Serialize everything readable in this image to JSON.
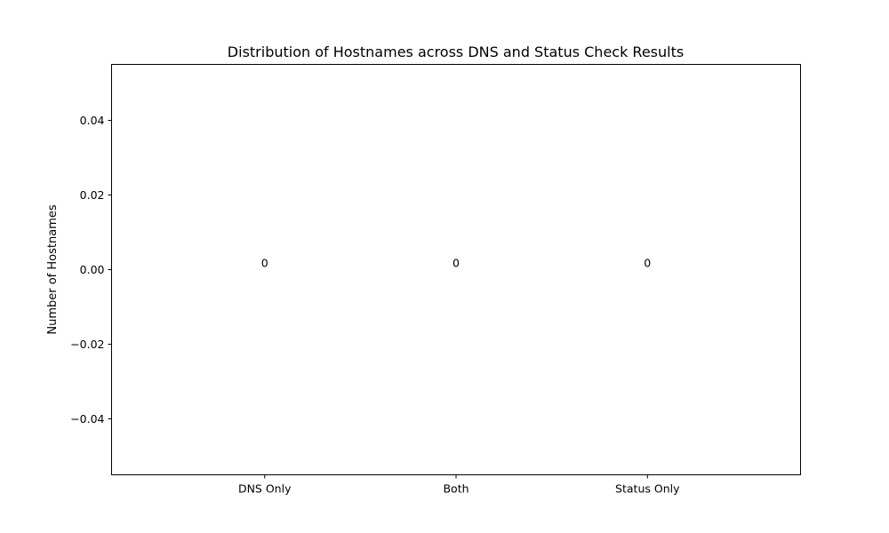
{
  "chart_data": {
    "type": "bar",
    "title": "Distribution of Hostnames across DNS and Status Check Results",
    "xlabel": "",
    "ylabel": "Number of Hostnames",
    "categories": [
      "DNS Only",
      "Both",
      "Status Only"
    ],
    "values": [
      0,
      0,
      0
    ],
    "data_labels": [
      "0",
      "0",
      "0"
    ],
    "ylim": [
      -0.055,
      0.055
    ],
    "yticks": [
      -0.04,
      -0.02,
      0.0,
      0.02,
      0.04
    ],
    "ytick_labels": [
      "−0.04",
      "−0.02",
      "0.00",
      "0.02",
      "0.04"
    ],
    "grid": false,
    "legend": "none",
    "bar_color": "#1f77b4"
  }
}
